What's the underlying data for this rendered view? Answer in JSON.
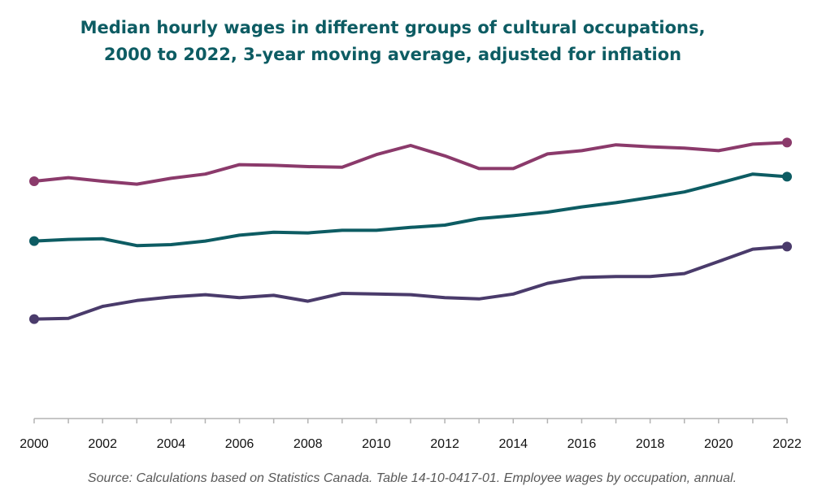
{
  "chart_data": {
    "type": "line",
    "title_lines": [
      "Median hourly wages in different groups of cultural occupations,",
      "2000 to 2022, 3-year moving average, adjusted for inflation"
    ],
    "x": [
      2000,
      2001,
      2002,
      2003,
      2004,
      2005,
      2006,
      2007,
      2008,
      2009,
      2010,
      2011,
      2012,
      2013,
      2014,
      2015,
      2016,
      2017,
      2018,
      2019,
      2020,
      2021,
      2022
    ],
    "x_tick_labels": [
      "2000",
      "2002",
      "2004",
      "2006",
      "2008",
      "2010",
      "2012",
      "2014",
      "2016",
      "2018",
      "2020",
      "2022"
    ],
    "xlabel": "",
    "ylabel": "",
    "y_axis_shown": false,
    "grid": false,
    "legend": "none",
    "series": [
      {
        "color": "#8b3a6b",
        "values": [
          73.0,
          74.1,
          73.0,
          72.1,
          73.9,
          75.2,
          78.1,
          77.9,
          77.5,
          77.3,
          81.2,
          84.0,
          80.8,
          76.9,
          76.9,
          81.4,
          82.4,
          84.2,
          83.6,
          83.2,
          82.4,
          84.4,
          84.9
        ]
      },
      {
        "color": "#0d5c63",
        "values": [
          54.6,
          55.1,
          55.3,
          53.2,
          53.5,
          54.6,
          56.4,
          57.3,
          57.1,
          57.9,
          57.9,
          58.8,
          59.5,
          61.5,
          62.4,
          63.5,
          65.1,
          66.4,
          68.0,
          69.7,
          72.4,
          75.2,
          74.4
        ]
      },
      {
        "color": "#4a3b6b",
        "values": [
          30.6,
          30.8,
          34.5,
          36.3,
          37.4,
          38.1,
          37.2,
          37.9,
          36.1,
          38.5,
          38.3,
          38.1,
          37.2,
          36.8,
          38.3,
          41.6,
          43.4,
          43.7,
          43.7,
          44.6,
          48.3,
          52.1,
          52.9
        ]
      }
    ]
  },
  "source": "Source: Calculations based on Statistics Canada. Table 14-10-0417-01. Employee wages by occupation, annual.",
  "colors": {
    "title": "#0d5c63",
    "axis": "#b3b3b3",
    "source_text": "#595959"
  }
}
